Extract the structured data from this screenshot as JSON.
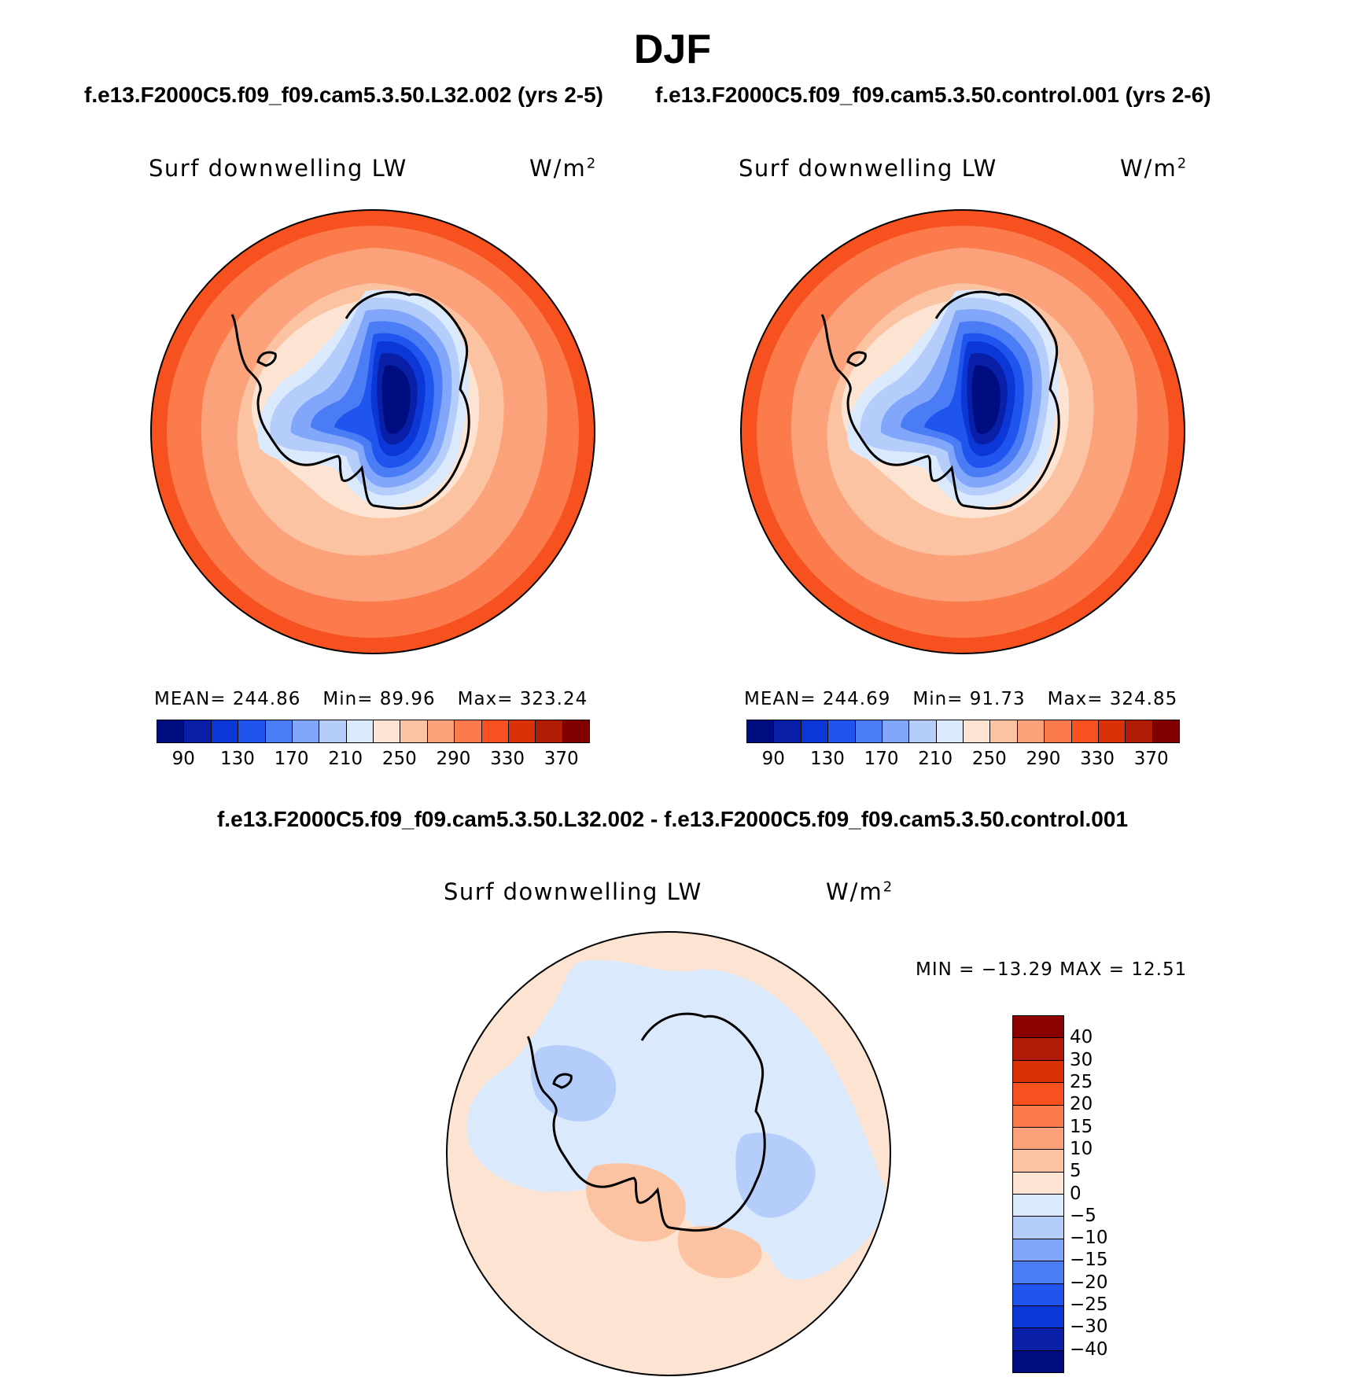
{
  "title": "DJF",
  "panels": {
    "left": {
      "case": "f.e13.F2000C5.f09_f09.cam5.3.50.L32.002 (yrs 2-5)",
      "variable": "Surf downwelling LW",
      "units_base": "W/m",
      "units_exp": "2",
      "mean_label": "MEAN= 244.86",
      "min_label": "Min=  89.96",
      "max_label": "Max= 323.24"
    },
    "right": {
      "case": "f.e13.F2000C5.f09_f09.cam5.3.50.control.001 (yrs 2-6)",
      "variable": "Surf downwelling LW",
      "units_base": "W/m",
      "units_exp": "2",
      "mean_label": "MEAN= 244.69",
      "min_label": "Min=  91.73",
      "max_label": "Max= 324.85"
    },
    "diff": {
      "case": "f.e13.F2000C5.f09_f09.cam5.3.50.L32.002 - f.e13.F2000C5.f09_f09.cam5.3.50.control.001",
      "variable": "Surf downwelling LW",
      "units_base": "W/m",
      "units_exp": "2",
      "minmax_label": "MIN = −13.29 MAX =   12.51"
    }
  },
  "colorbar_abs": {
    "ticks": [
      "90",
      "130",
      "170",
      "210",
      "250",
      "290",
      "330",
      "370"
    ],
    "colors": [
      "#000d80",
      "#0a1fa8",
      "#0a37d6",
      "#1f55ee",
      "#4a7cf5",
      "#82a6f9",
      "#b4cdfb",
      "#dbe9fc",
      "#fde4d2",
      "#fcc3a3",
      "#fca27b",
      "#fb7b4c",
      "#f6511f",
      "#da3109",
      "#b01c05",
      "#800000"
    ]
  },
  "colorbar_diff": {
    "ticks": [
      "40",
      "30",
      "25",
      "20",
      "15",
      "10",
      "5",
      "0",
      "−5",
      "−10",
      "−15",
      "−20",
      "−25",
      "−30",
      "−40"
    ],
    "colors": [
      "#8b0000",
      "#b01c05",
      "#da3109",
      "#f6511f",
      "#fb7b4c",
      "#fca27b",
      "#fcc3a3",
      "#fde4d2",
      "#dbe9fc",
      "#b4cdfb",
      "#82a6f9",
      "#4a7cf5",
      "#1f55ee",
      "#0a37d6",
      "#0a1fa8",
      "#000d80"
    ]
  },
  "chart_data": [
    {
      "type": "heatmap",
      "projection": "south polar stereographic",
      "region": "Antarctica",
      "title": "f.e13.F2000C5.f09_f09.cam5.3.50.L32.002 (yrs 2-5)",
      "variable": "Surf downwelling LW",
      "units": "W/m2",
      "mean": 244.86,
      "min": 89.96,
      "max": 323.24,
      "contour_levels": [
        90,
        110,
        130,
        150,
        170,
        190,
        210,
        230,
        250,
        270,
        290,
        310,
        330,
        350,
        370
      ]
    },
    {
      "type": "heatmap",
      "projection": "south polar stereographic",
      "region": "Antarctica",
      "title": "f.e13.F2000C5.f09_f09.cam5.3.50.control.001 (yrs 2-6)",
      "variable": "Surf downwelling LW",
      "units": "W/m2",
      "mean": 244.69,
      "min": 91.73,
      "max": 324.85,
      "contour_levels": [
        90,
        110,
        130,
        150,
        170,
        190,
        210,
        230,
        250,
        270,
        290,
        310,
        330,
        350,
        370
      ]
    },
    {
      "type": "heatmap",
      "projection": "south polar stereographic",
      "region": "Antarctica",
      "title": "f.e13.F2000C5.f09_f09.cam5.3.50.L32.002 - f.e13.F2000C5.f09_f09.cam5.3.50.control.001",
      "variable": "Surf downwelling LW",
      "units": "W/m2",
      "min": -13.29,
      "max": 12.51,
      "contour_levels": [
        -40,
        -30,
        -25,
        -20,
        -15,
        -10,
        -5,
        0,
        5,
        10,
        15,
        20,
        25,
        30,
        40
      ]
    }
  ]
}
